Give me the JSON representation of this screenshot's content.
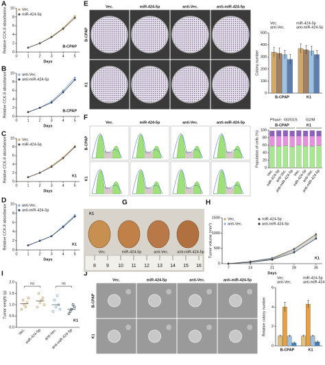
{
  "panel_letters": [
    "A",
    "B",
    "C",
    "D",
    "E",
    "F",
    "G",
    "H",
    "I",
    "J"
  ],
  "images": {
    "E": {
      "columns": [
        "Vec.",
        "miR-424-5p",
        "anti-Vec.",
        "anti-miR-424-5p"
      ],
      "rows": [
        "B-CPAP",
        "K1"
      ]
    },
    "F": {
      "columns": [
        "Vec.",
        "miR-424-5p",
        "anti-Vec.",
        "anti-miR-424-5p"
      ],
      "rows": [
        "B-CPAP",
        "K1"
      ]
    },
    "G": {
      "line": "K1",
      "labels": [
        "Vec.",
        "miR-424-5p",
        "anti-Vec.",
        "anti-miR-424-5p"
      ],
      "ruler": [
        8,
        9,
        10,
        11,
        12,
        13,
        14,
        15,
        16
      ]
    },
    "J": {
      "columns": [
        "Vec.",
        "miR-424-5p",
        "anti-Vec.",
        "anti-miR-424-5p"
      ],
      "rows": [
        "B-CPAP",
        "K1"
      ]
    }
  },
  "chart_data": [
    {
      "type": "line",
      "x_label": "Days",
      "y_label": "Relative CCK-8 absorbance",
      "annotation": "B-CPAP",
      "x": [
        1,
        2,
        3,
        4,
        5
      ],
      "xlim": [
        0,
        5.4
      ],
      "xticks": [
        0,
        1,
        2,
        3,
        4,
        5
      ],
      "ylim": [
        0,
        10
      ],
      "yticks": [
        0,
        2,
        4,
        6,
        8,
        10
      ],
      "series": [
        {
          "name": "Vec.",
          "color": "#c8a060",
          "values": [
            1,
            2,
            3.5,
            5.5,
            8.2
          ]
        },
        {
          "name": "miR-424-5p",
          "color": "#4a4a4a",
          "values": [
            1,
            2,
            3.4,
            5.3,
            7.8
          ]
        }
      ]
    },
    {
      "type": "line",
      "x_label": "Days",
      "y_label": "Relative CCK-8 absorbance",
      "annotation": "B-CPAP",
      "x": [
        1,
        2,
        3,
        4,
        5
      ],
      "xlim": [
        0,
        5.4
      ],
      "xticks": [
        0,
        1,
        2,
        3,
        4,
        5
      ],
      "ylim": [
        0,
        10
      ],
      "yticks": [
        0,
        2,
        4,
        6,
        8,
        10
      ],
      "series": [
        {
          "name": "anti-Vec.",
          "color": "#7fa7d6",
          "values": [
            1,
            2,
            3.5,
            6,
            9
          ]
        },
        {
          "name": "anti-miR-424-5p",
          "color": "#2f3f5a",
          "values": [
            1,
            2,
            3.2,
            5.6,
            8.5
          ]
        }
      ]
    },
    {
      "type": "line",
      "x_label": "Days",
      "y_label": "Relative CCK-8 absorbance",
      "annotation": "K1",
      "x": [
        1,
        2,
        3,
        4,
        5
      ],
      "xlim": [
        0,
        5.4
      ],
      "xticks": [
        0,
        1,
        2,
        3,
        4,
        5
      ],
      "ylim": [
        0,
        10
      ],
      "yticks": [
        0,
        2,
        4,
        6,
        8,
        10
      ],
      "series": [
        {
          "name": "Vec.",
          "color": "#c8a060",
          "values": [
            1,
            2,
            3.6,
            5.6,
            8.2
          ]
        },
        {
          "name": "miR-424-5p",
          "color": "#4a4a4a",
          "values": [
            1,
            2,
            3.4,
            5.4,
            8
          ]
        }
      ]
    },
    {
      "type": "line",
      "x_label": "Days",
      "y_label": "Relative CCK-8 absorbance",
      "annotation": "K1",
      "x": [
        1,
        2,
        3,
        4,
        5
      ],
      "xlim": [
        0,
        5.4
      ],
      "xticks": [
        0,
        1,
        2,
        3,
        4,
        5
      ],
      "ylim": [
        0,
        10
      ],
      "yticks": [
        0,
        2,
        4,
        6,
        8,
        10
      ],
      "series": [
        {
          "name": "anti-Vec.",
          "color": "#7fa7d6",
          "values": [
            1,
            2,
            3,
            5.2,
            7.6
          ]
        },
        {
          "name": "anti-miR-424-5p",
          "color": "#2f3f5a",
          "values": [
            1,
            2,
            3,
            5,
            7.3
          ]
        }
      ]
    },
    {
      "type": "bar",
      "y_label": "Colony number",
      "categories": [
        "B-CPAP",
        "K1"
      ],
      "ylim": [
        0,
        500
      ],
      "yticks": [
        0,
        100,
        200,
        300,
        400,
        500
      ],
      "series": [
        {
          "name": "Vec.",
          "color": "#d2a86e",
          "values": [
            340,
            370
          ],
          "errors": [
            40,
            40
          ]
        },
        {
          "name": "miR-424-5p",
          "color": "#a08060",
          "values": [
            330,
            360
          ],
          "errors": [
            45,
            35
          ]
        },
        {
          "name": "anti-Vec.",
          "color": "#9cc3e6",
          "values": [
            320,
            350
          ],
          "errors": [
            35,
            40
          ]
        },
        {
          "name": "anti-miR-424-5p",
          "color": "#5b7fb0",
          "values": [
            280,
            320
          ],
          "errors": [
            40,
            35
          ]
        }
      ]
    },
    {
      "type": "stacked",
      "y_label": "Population of cells (%)",
      "legend_title": "Phase:",
      "groups": [
        "B-CPAP",
        "K1"
      ],
      "categories": [
        "Vec.",
        "miR-424-5p",
        "anti-Vec.",
        "anti-miR-424-5p",
        "Vec.",
        "miR-424-5p",
        "anti-Vec.",
        "anti-miR-424-5p"
      ],
      "ylim": [
        0,
        100
      ],
      "yticks": [
        0,
        20,
        40,
        60,
        80,
        100
      ],
      "series": [
        {
          "name": "G0/G1",
          "color": "#a8e890",
          "values": [
            58,
            57,
            59,
            56,
            60,
            58,
            57,
            59
          ]
        },
        {
          "name": "S",
          "color": "#e890e0",
          "values": [
            26,
            27,
            25,
            28,
            24,
            26,
            27,
            25
          ]
        },
        {
          "name": "G2/M",
          "color": "#9060c0",
          "values": [
            14,
            15,
            15,
            14,
            15,
            14,
            15,
            14
          ]
        }
      ]
    },
    {
      "type": "line",
      "x_label": "Days",
      "y_label": "Tumor volume (mm³)",
      "annotation": "K1",
      "x": [
        7,
        14,
        21,
        28,
        35
      ],
      "xlim": [
        5,
        37
      ],
      "xticks": [
        7,
        14,
        21,
        28,
        35
      ],
      "ylim": [
        0,
        1500
      ],
      "yticks": [
        0,
        500,
        1000,
        1500
      ],
      "series": [
        {
          "name": "Vec.",
          "color": "#c8a060",
          "values": [
            0,
            60,
            160,
            460,
            920
          ]
        },
        {
          "name": "miR-424-5p",
          "color": "#555555",
          "values": [
            0,
            70,
            180,
            480,
            960
          ]
        },
        {
          "name": "anti-Vec.",
          "color": "#8fb0d8",
          "values": [
            0,
            55,
            150,
            420,
            870
          ]
        },
        {
          "name": "anti-miR-424-5p",
          "color": "#333333",
          "values": [
            0,
            45,
            130,
            370,
            820
          ]
        }
      ]
    },
    {
      "type": "strip",
      "y_label": "Tumor weight (g)",
      "annotations": [
        "ns",
        "ns",
        "K1"
      ],
      "categories": [
        "Vec.",
        "miR-424-5p",
        "anti-Vec.",
        "anti-miR-424-5p"
      ],
      "colors": [
        "#c8a060",
        "#c8a060",
        "#7fa7d6",
        "#2f3f5a"
      ],
      "ylim": [
        0,
        2
      ],
      "yticks": [
        {
          "value": 0,
          "label": "0.0"
        },
        {
          "value": 0.5,
          "label": "0.5"
        },
        {
          "value": 1,
          "label": "1.0"
        },
        {
          "value": 1.5,
          "label": "1.5"
        },
        {
          "value": 2,
          "label": "2.0"
        }
      ],
      "values": [
        [
          0.8,
          1.0,
          1.1,
          1.2,
          0.9,
          1.3
        ],
        [
          0.9,
          1.1,
          1.3,
          1.5,
          1.2,
          1.0
        ],
        [
          0.7,
          0.9,
          1.0,
          1.2,
          1.4,
          0.8
        ],
        [
          0.6,
          0.8,
          0.9,
          0.7,
          1.0
        ]
      ]
    },
    {
      "type": "bar",
      "y_label": "Relative colony number",
      "categories": [
        "B-CPAP",
        "K1"
      ],
      "ylim": [
        0,
        6
      ],
      "yticks": [
        0,
        2,
        4,
        6
      ],
      "series": [
        {
          "name": "Vec.",
          "color": "#e0c080",
          "values": [
            1,
            1
          ],
          "errors": [
            0.1,
            0.1
          ]
        },
        {
          "name": "miR-424-5p",
          "color": "#e8a040",
          "values": [
            4,
            4.3
          ],
          "errors": [
            0.5,
            0.4
          ]
        },
        {
          "name": "anti-Vec.",
          "color": "#a0c0e0",
          "values": [
            1,
            1
          ],
          "errors": [
            0.1,
            0.1
          ]
        },
        {
          "name": "anti-miR-424-5p",
          "color": "#4080c0",
          "values": [
            0.3,
            0.4
          ],
          "errors": [
            0.08,
            0.1
          ]
        }
      ]
    }
  ]
}
